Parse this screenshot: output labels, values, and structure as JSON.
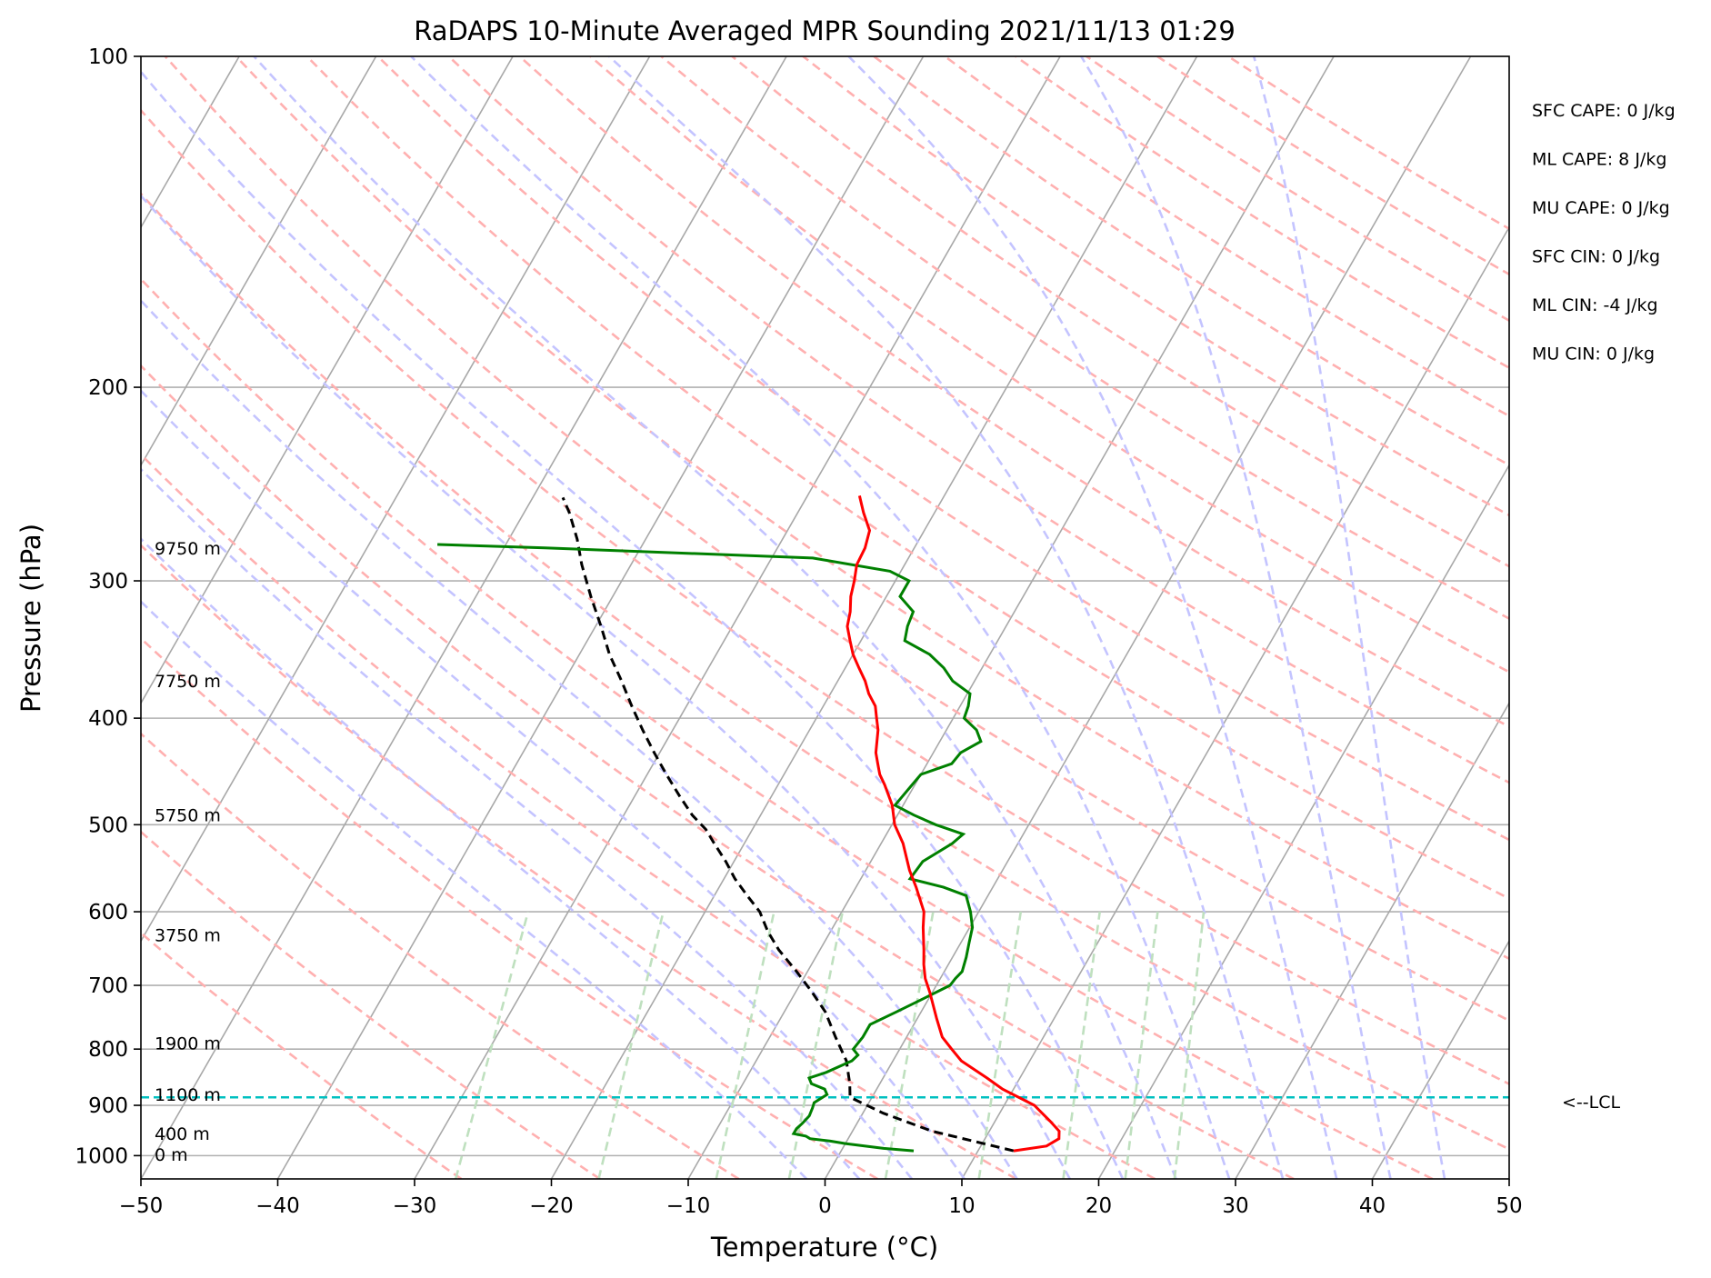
{
  "chart_data": {
    "type": "line",
    "title": "RaDAPS 10-Minute Averaged MPR Sounding 2021/11/13 01:29",
    "xlabel": "Temperature (°C)",
    "ylabel": "Pressure (hPa)",
    "xlim": [
      -50,
      50
    ],
    "ylim": [
      1050,
      100
    ],
    "y_scale": "log",
    "skew": "skew-T",
    "grid": true,
    "x_ticks": [
      "−50",
      "−40",
      "−30",
      "−20",
      "−10",
      "0",
      "10",
      "20",
      "30",
      "40",
      "50"
    ],
    "y_ticks": [
      "100",
      "200",
      "300",
      "400",
      "500",
      "600",
      "700",
      "800",
      "900",
      "1000"
    ],
    "series": [
      {
        "role": "temperature",
        "color": "#ff0000",
        "points": [
          [
            12.6,
            990
          ],
          [
            14.8,
            980
          ],
          [
            15.4,
            965
          ],
          [
            15.1,
            950
          ],
          [
            14.0,
            930
          ],
          [
            12.2,
            900
          ],
          [
            9.2,
            870
          ],
          [
            7.6,
            850
          ],
          [
            5.0,
            820
          ],
          [
            3.8,
            800
          ],
          [
            2.6,
            780
          ],
          [
            1.4,
            750
          ],
          [
            -0.2,
            710
          ],
          [
            -1.1,
            690
          ],
          [
            -1.8,
            670
          ],
          [
            -2.4,
            650
          ],
          [
            -3.4,
            620
          ],
          [
            -4.0,
            600
          ],
          [
            -5.6,
            570
          ],
          [
            -6.8,
            550
          ],
          [
            -8.4,
            520
          ],
          [
            -9.8,
            500
          ],
          [
            -10.8,
            480
          ],
          [
            -12.2,
            460
          ],
          [
            -13.0,
            450
          ],
          [
            -13.6,
            440
          ],
          [
            -14.2,
            430
          ],
          [
            -15.0,
            410
          ],
          [
            -15.6,
            400
          ],
          [
            -16.2,
            390
          ],
          [
            -17.2,
            380
          ],
          [
            -18.0,
            370
          ],
          [
            -19.0,
            360
          ],
          [
            -20.0,
            350
          ],
          [
            -20.8,
            340
          ],
          [
            -21.6,
            330
          ],
          [
            -22.0,
            320
          ],
          [
            -22.6,
            310
          ],
          [
            -23.0,
            300
          ],
          [
            -23.5,
            290
          ],
          [
            -23.6,
            280
          ],
          [
            -24.0,
            270
          ],
          [
            -25.2,
            260
          ],
          [
            -26.2,
            251
          ]
        ]
      },
      {
        "role": "dewpoint",
        "color": "#008000",
        "points": [
          [
            5.3,
            990
          ],
          [
            3.0,
            985
          ],
          [
            0.0,
            975
          ],
          [
            -1.2,
            970
          ],
          [
            -2.8,
            965
          ],
          [
            -3.2,
            960
          ],
          [
            -4.2,
            955
          ],
          [
            -4.2,
            945
          ],
          [
            -4.0,
            935
          ],
          [
            -3.8,
            920
          ],
          [
            -3.9,
            905
          ],
          [
            -4.0,
            895
          ],
          [
            -3.4,
            880
          ],
          [
            -3.8,
            870
          ],
          [
            -5.0,
            860
          ],
          [
            -5.4,
            850
          ],
          [
            -4.4,
            840
          ],
          [
            -3.0,
            820
          ],
          [
            -2.8,
            810
          ],
          [
            -3.4,
            800
          ],
          [
            -3.2,
            780
          ],
          [
            -3.2,
            760
          ],
          [
            -1.8,
            740
          ],
          [
            -0.4,
            720
          ],
          [
            1.0,
            700
          ],
          [
            1.1,
            690
          ],
          [
            1.3,
            680
          ],
          [
            1.0,
            660
          ],
          [
            0.6,
            640
          ],
          [
            0.2,
            620
          ],
          [
            -0.6,
            600
          ],
          [
            -1.6,
            580
          ],
          [
            -3.6,
            570
          ],
          [
            -6.4,
            560
          ],
          [
            -6.2,
            540
          ],
          [
            -4.8,
            520
          ],
          [
            -4.4,
            510
          ],
          [
            -6.8,
            500
          ],
          [
            -8.8,
            490
          ],
          [
            -10.6,
            480
          ],
          [
            -10.4,
            470
          ],
          [
            -10.2,
            460
          ],
          [
            -10.0,
            450
          ],
          [
            -8.2,
            440
          ],
          [
            -8.0,
            430
          ],
          [
            -7.0,
            420
          ],
          [
            -7.8,
            410
          ],
          [
            -9.2,
            400
          ],
          [
            -9.4,
            390
          ],
          [
            -9.8,
            380
          ],
          [
            -11.6,
            370
          ],
          [
            -12.8,
            360
          ],
          [
            -14.4,
            350
          ],
          [
            -16.8,
            340
          ],
          [
            -17.2,
            330
          ],
          [
            -17.4,
            320
          ],
          [
            -19.0,
            310
          ],
          [
            -19.0,
            300
          ],
          [
            -20.8,
            294
          ],
          [
            -27.0,
            286
          ],
          [
            -47.0,
            280
          ],
          [
            -55.0,
            278
          ]
        ]
      },
      {
        "role": "parcel",
        "color": "#000000",
        "points": [
          [
            12.6,
            990
          ],
          [
            5.8,
            950
          ],
          [
            1.5,
            915
          ],
          [
            -1.6,
            885
          ],
          [
            -2.2,
            860
          ],
          [
            -3.4,
            820
          ],
          [
            -5.2,
            780
          ],
          [
            -7.0,
            740
          ],
          [
            -8.8,
            710
          ],
          [
            -10.8,
            680
          ],
          [
            -13.0,
            650
          ],
          [
            -14.6,
            625
          ],
          [
            -16.0,
            600
          ],
          [
            -17.6,
            580
          ],
          [
            -19.2,
            560
          ],
          [
            -20.6,
            540
          ],
          [
            -22.2,
            520
          ],
          [
            -23.4,
            505
          ],
          [
            -25.0,
            490
          ],
          [
            -26.8,
            470
          ],
          [
            -28.6,
            450
          ],
          [
            -30.4,
            430
          ],
          [
            -32.2,
            410
          ],
          [
            -34.0,
            390
          ],
          [
            -35.8,
            370
          ],
          [
            -37.8,
            350
          ],
          [
            -39.6,
            330
          ],
          [
            -41.6,
            310
          ],
          [
            -43.6,
            290
          ],
          [
            -45.0,
            275
          ],
          [
            -46.7,
            260
          ],
          [
            -47.8,
            252
          ]
        ]
      }
    ],
    "reference_lines": {
      "dry_adiabats": "red dashed",
      "moist_adiabats": "blue dashed",
      "mixing_ratio_lines": "green dashed",
      "isotherms": "gray solid, skewed",
      "isobars": "gray solid"
    },
    "lcl": {
      "pressure": 885,
      "color": "#00c0c0",
      "label": "<--LCL"
    },
    "height_labels": [
      {
        "text": "9750 m",
        "pressure": 280
      },
      {
        "text": "7750 m",
        "pressure": 370
      },
      {
        "text": "5750 m",
        "pressure": 490
      },
      {
        "text": "3750 m",
        "pressure": 630
      },
      {
        "text": "1900 m",
        "pressure": 790
      },
      {
        "text": "1100 m",
        "pressure": 880
      },
      {
        "text": "400 m",
        "pressure": 955
      },
      {
        "text": "0 m",
        "pressure": 997
      }
    ],
    "annotations": [
      "SFC CAPE: 0 J/kg",
      "ML CAPE: 8 J/kg",
      "MU CAPE: 0 J/kg",
      "SFC CIN: 0 J/kg",
      "ML CIN: -4 J/kg",
      "MU CIN: 0 J/kg"
    ]
  }
}
